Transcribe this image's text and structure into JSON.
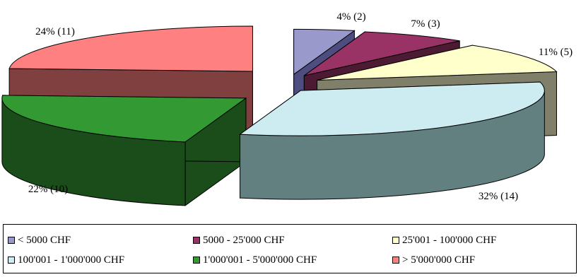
{
  "chart_data": {
    "type": "pie",
    "title": "",
    "slices": [
      {
        "label": "< 5000 CHF",
        "percent": 4,
        "count": 2,
        "data_label": "4% (2)",
        "color": "#9999cc",
        "side": "#4d4d80"
      },
      {
        "label": "5000 - 25'000 CHF",
        "percent": 7,
        "count": 3,
        "data_label": "7% (3)",
        "color": "#993366",
        "side": "#4d1a33"
      },
      {
        "label": "25'001 - 100'000 CHF",
        "percent": 11,
        "count": 5,
        "data_label": "11% (5)",
        "color": "#ffffcc",
        "side": "#80806a"
      },
      {
        "label": "100'001 - 1'000'000 CHF",
        "percent": 32,
        "count": 14,
        "data_label": "32% (14)",
        "color": "#ccecf2",
        "side": "#638080"
      },
      {
        "label": "1'000'001 - 5'000'000 CHF",
        "percent": 22,
        "count": 10,
        "data_label": "22% (10)",
        "color": "#339933",
        "side": "#1a4d1a"
      },
      {
        "label": "> 5'000'000 CHF",
        "percent": 24,
        "count": 11,
        "data_label": "24% (11)",
        "color": "#ff8080",
        "side": "#804040"
      }
    ],
    "legend_position": "bottom"
  }
}
